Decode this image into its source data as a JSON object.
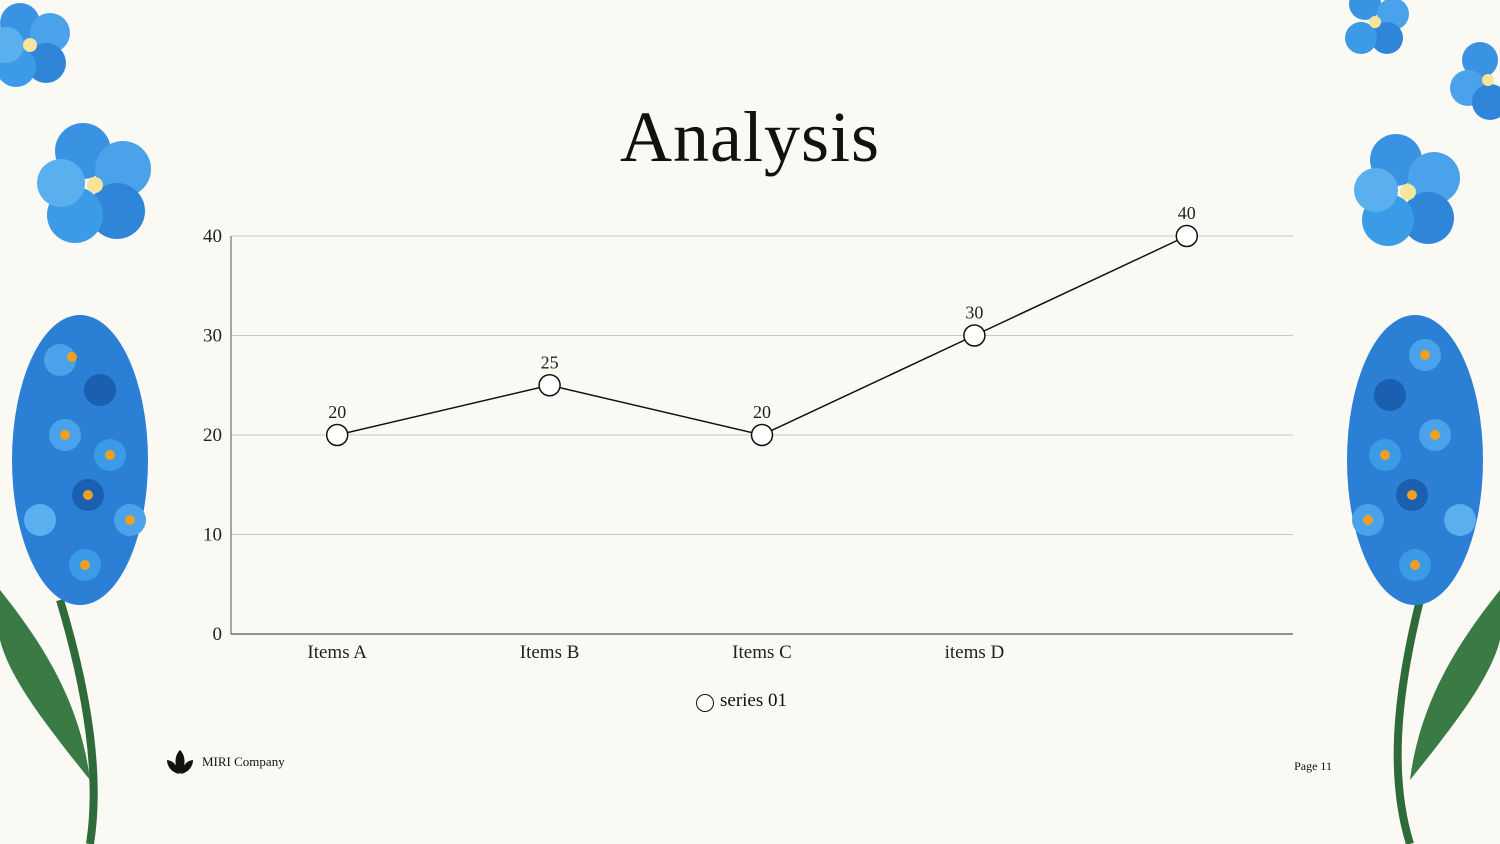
{
  "slide": {
    "title": "Analysis",
    "company": "MIRI Company",
    "page_label": "Page 11"
  },
  "legend": {
    "series_name": "series 01"
  },
  "colors": {
    "background": "#faf9f4",
    "line": "#111111",
    "marker_fill": "#ffffff",
    "grid": "#c8c8c8",
    "flower_blue": "#2f8fe0",
    "flower_dark_blue": "#1a5fb0",
    "flower_center": "#f0a020",
    "leaf_green": "#2f6b3a"
  },
  "chart_data": {
    "type": "line",
    "categories": [
      "Items A",
      "Items B",
      "Items C",
      "items D",
      ""
    ],
    "series": [
      {
        "name": "series 01",
        "values": [
          20,
          25,
          20,
          30,
          40
        ]
      }
    ],
    "data_labels": [
      "20",
      "25",
      "20",
      "30",
      "40"
    ],
    "y_ticks": [
      "0",
      "10",
      "20",
      "30",
      "40"
    ],
    "ylim": [
      0,
      40
    ],
    "grid": true,
    "legend_position": "bottom"
  }
}
